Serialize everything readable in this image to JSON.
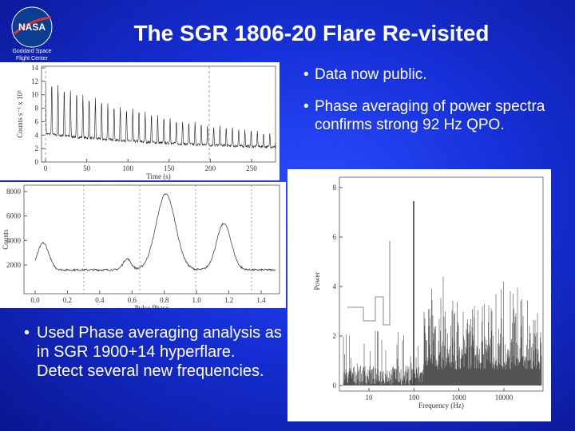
{
  "header": {
    "logo": "NASA",
    "center": [
      "Goddard Space",
      "Flight Center"
    ],
    "title": "The SGR 1806-20 Flare Re-visited"
  },
  "bullets_right": [
    "Data now public.",
    "Phase averaging of power spectra confirms strong 92 Hz QPO."
  ],
  "bullet_left": "Used Phase averaging analysis as in SGR 1900+14 hyperflare.  Detect several new frequencies.",
  "bullet_symbol": "•",
  "figures": [
    {
      "xlabel": "Time (s)",
      "ylabel": "Counts s⁻¹ x 10³",
      "xticks": [
        "0",
        "50",
        "100",
        "150",
        "200",
        "250"
      ],
      "yticks": [
        "0",
        "2",
        "4",
        "6",
        "8",
        "10",
        "12",
        "14"
      ]
    },
    {
      "xlabel": "Pulse Phase",
      "ylabel": "Counts",
      "xticks": [
        "0.0",
        "0.2",
        "0.4",
        "0.6",
        "0.8",
        "1.0",
        "1.2",
        "1.4"
      ],
      "yticks": [
        "2000",
        "4000",
        "6000",
        "8000"
      ]
    },
    {
      "xlabel": "Frequency (Hz)",
      "ylabel": "Power",
      "xticks": [
        "10",
        "100",
        "1000",
        "10000"
      ],
      "yticks": [
        "0",
        "2",
        "4",
        "6",
        "8"
      ]
    }
  ]
}
